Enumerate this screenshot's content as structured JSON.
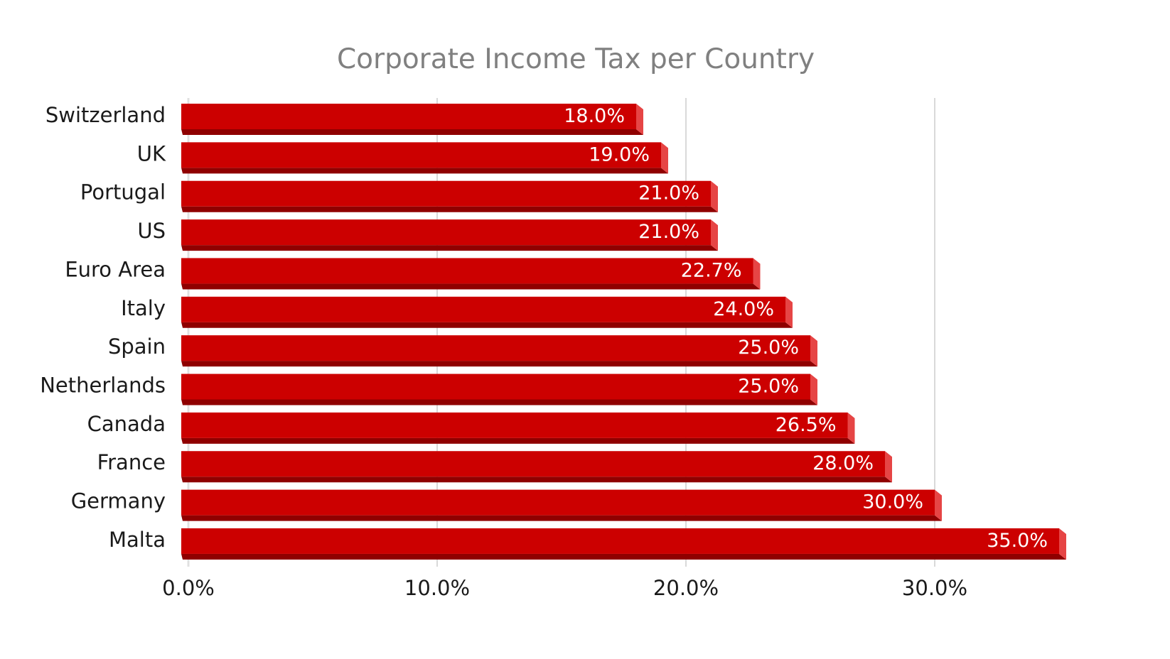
{
  "chart_data": {
    "type": "bar",
    "orientation": "horizontal",
    "title": "Corporate Income Tax per Country",
    "xlabel": "",
    "ylabel": "",
    "categories": [
      "Switzerland",
      "UK",
      "Portugal",
      "US",
      "Euro Area",
      "Italy",
      "Spain",
      "Netherlands",
      "Canada",
      "France",
      "Germany",
      "Malta"
    ],
    "values": [
      18.0,
      19.0,
      21.0,
      21.0,
      22.7,
      24.0,
      25.0,
      25.0,
      26.5,
      28.0,
      30.0,
      35.0
    ],
    "value_labels": [
      "18.0%",
      "19.0%",
      "21.0%",
      "21.0%",
      "22.7%",
      "24.0%",
      "25.0%",
      "25.0%",
      "26.5%",
      "28.0%",
      "30.0%",
      "35.0%"
    ],
    "x_ticks": [
      0,
      10,
      20,
      30
    ],
    "x_tick_labels": [
      "0.0%",
      "10.0%",
      "20.0%",
      "30.0%"
    ],
    "xlim": [
      0,
      35
    ],
    "grid": "vertical",
    "legend": "none",
    "colors": {
      "bar": "#cc0000",
      "bar_bottom": "#8f0000",
      "bar_side": "#e64545",
      "title": "#808080",
      "grid": "#d9d9d9",
      "text": "#1a1a1a"
    }
  }
}
